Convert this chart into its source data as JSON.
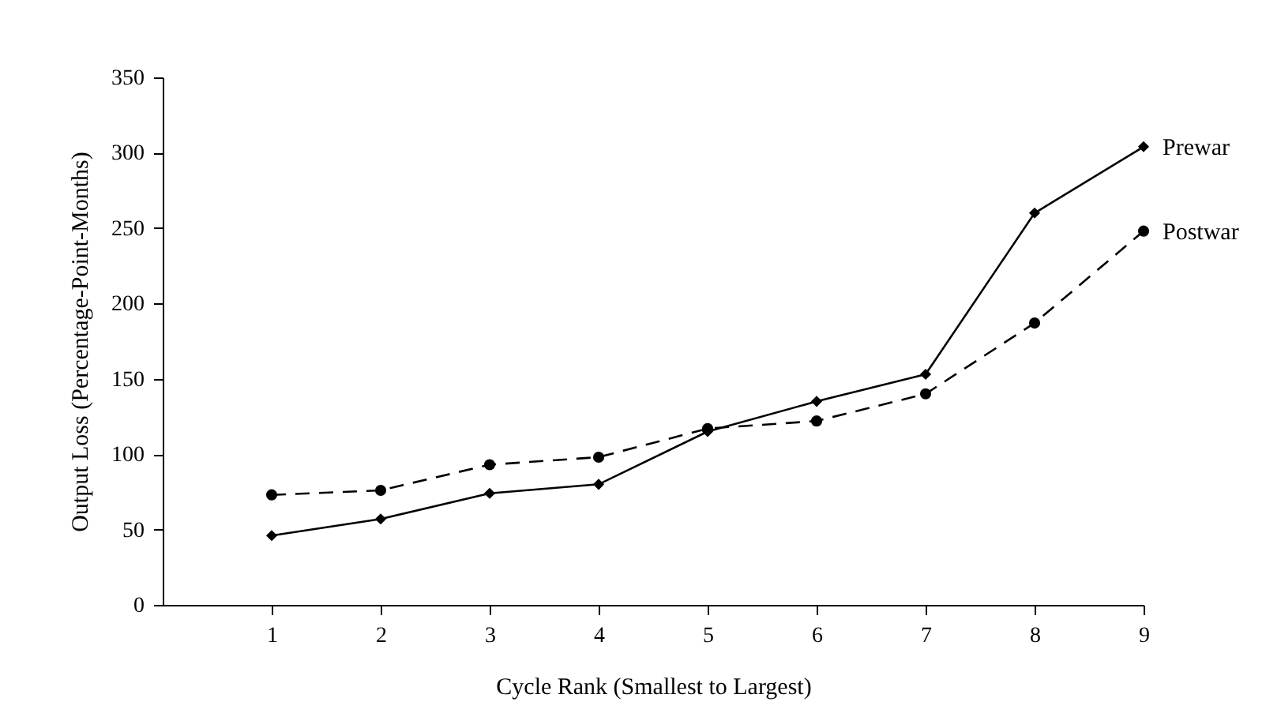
{
  "chart_data": {
    "type": "line",
    "xlabel": "Cycle Rank (Smallest to Largest)",
    "ylabel": "Output Loss (Percentage-Point-Months)",
    "x": [
      1,
      2,
      3,
      4,
      5,
      6,
      7,
      8,
      9
    ],
    "series": [
      {
        "name": "Prewar",
        "color": "#000000",
        "marker": "diamond",
        "line_style": "solid",
        "values": [
          46,
          57,
          74,
          80,
          115,
          135,
          153,
          260,
          304
        ]
      },
      {
        "name": "Postwar",
        "color": "#000000",
        "marker": "circle",
        "line_style": "dashed",
        "values": [
          73,
          76,
          93,
          98,
          117,
          122,
          140,
          187,
          248
        ]
      }
    ],
    "xlim": [
      0,
      9
    ],
    "xticks": [
      1,
      2,
      3,
      4,
      5,
      6,
      7,
      8,
      9
    ],
    "ylim": [
      0,
      350
    ],
    "yticks": [
      0,
      50,
      100,
      150,
      200,
      250,
      300,
      350
    ],
    "grid": false,
    "legend": false
  }
}
